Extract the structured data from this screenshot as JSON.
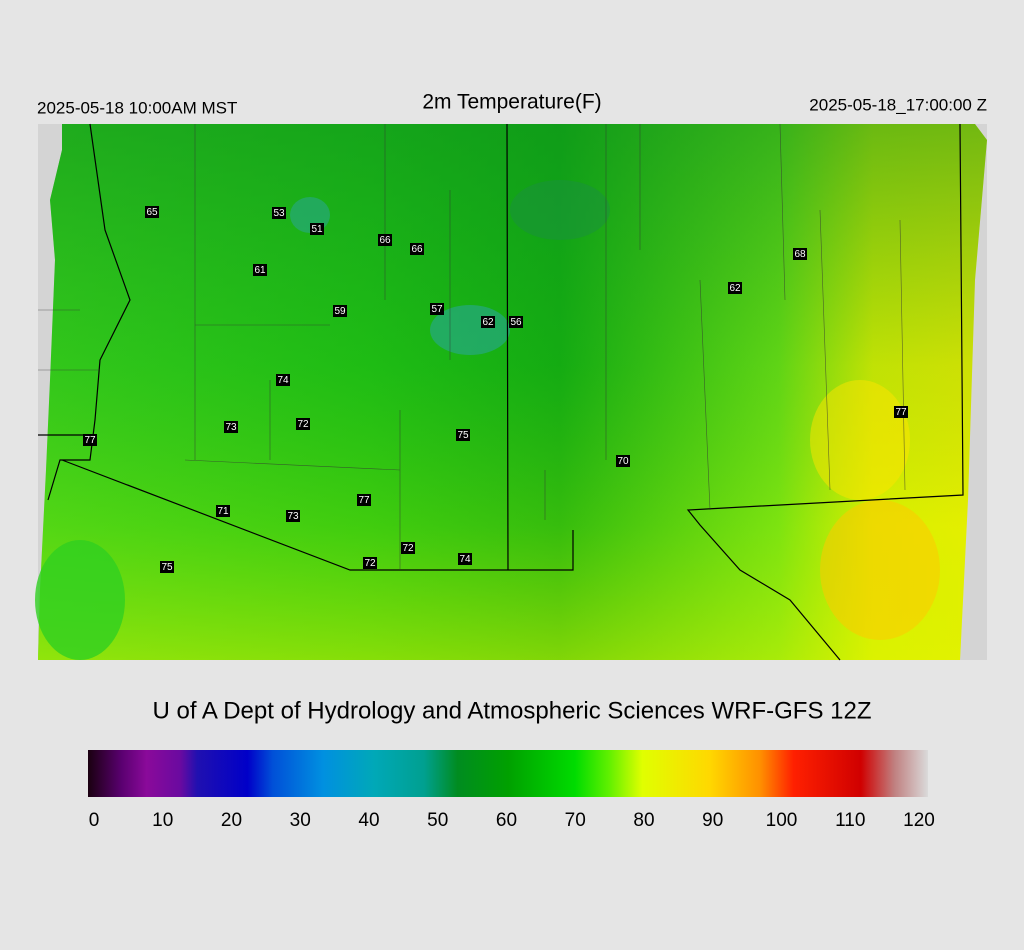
{
  "header": {
    "left": "2025-05-18 10:00AM MST",
    "title": "2m Temperature(F)",
    "right": "2025-05-18_17:00:00 Z"
  },
  "stations": [
    65,
    53,
    51,
    66,
    66,
    61,
    68,
    62,
    59,
    57,
    62,
    56,
    74,
    77,
    73,
    72,
    75,
    77,
    70,
    77,
    71,
    73,
    72,
    72,
    74,
    75
  ],
  "credit": "U of A Dept of Hydrology and Atmospheric Sciences WRF-GFS 12Z",
  "colorbar": {
    "ticks": [
      0,
      10,
      20,
      30,
      40,
      50,
      60,
      70,
      80,
      90,
      100,
      110,
      120
    ]
  }
}
